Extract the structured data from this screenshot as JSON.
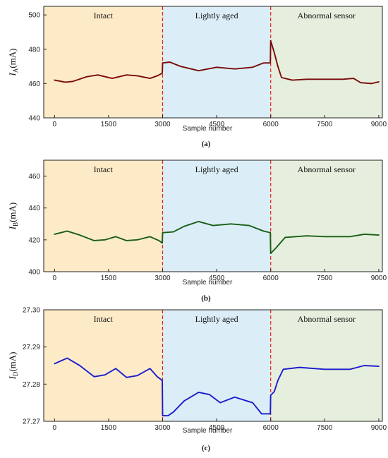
{
  "colors": {
    "region_fills": [
      "#fdebc8",
      "#dbeef7",
      "#e6efdd"
    ],
    "divider": "#e02020",
    "axis": "#222222"
  },
  "chart_data": [
    {
      "type": "line",
      "caption": "(a)",
      "ylabel_main": "I",
      "ylabel_sub": "A",
      "ylabel_unit": "(mA)",
      "xlabel": "Sample number",
      "xlim": [
        -300,
        9100
      ],
      "ylim": [
        440,
        505
      ],
      "xticks": [
        0,
        1500,
        3000,
        4500,
        6000,
        7500,
        9000
      ],
      "yticks": [
        440,
        460,
        480,
        500
      ],
      "regions": [
        {
          "label": "Intact",
          "from": -300,
          "to": 3000
        },
        {
          "label": "Lightly aged",
          "from": 3000,
          "to": 6000
        },
        {
          "label": "Abnormal sensor",
          "from": 6000,
          "to": 9100
        }
      ],
      "dividers": [
        3000,
        6000
      ],
      "series": [
        {
          "color": "#7b0a0a",
          "x": [
            0,
            300,
            500,
            900,
            1200,
            1600,
            2000,
            2300,
            2650,
            2850,
            2990,
            3000,
            3200,
            3500,
            4000,
            4500,
            5000,
            5500,
            5800,
            5990,
            6000,
            6100,
            6200,
            6300,
            6600,
            7000,
            7500,
            8000,
            8300,
            8500,
            8800,
            9000
          ],
          "y": [
            462,
            460.8,
            461.2,
            464,
            465,
            463,
            465,
            464.5,
            463,
            464.5,
            466,
            472,
            472.5,
            470,
            467.5,
            469.5,
            468.5,
            469.5,
            472,
            472,
            485,
            478,
            470,
            463.5,
            462,
            462.5,
            462.5,
            462.5,
            463,
            460.5,
            460,
            461
          ]
        }
      ]
    },
    {
      "type": "line",
      "caption": "(b)",
      "ylabel_main": "I",
      "ylabel_sub": "B",
      "ylabel_unit": "(mA)",
      "xlabel": "Sample number",
      "xlim": [
        -300,
        9100
      ],
      "ylim": [
        400,
        470
      ],
      "xticks": [
        0,
        1500,
        3000,
        4500,
        6000,
        7500,
        9000
      ],
      "yticks": [
        400,
        420,
        440,
        460
      ],
      "regions": [
        {
          "label": "Intact",
          "from": -300,
          "to": 3000
        },
        {
          "label": "Lightly aged",
          "from": 3000,
          "to": 6000
        },
        {
          "label": "Abnormal sensor",
          "from": 6000,
          "to": 9100
        }
      ],
      "dividers": [
        3000,
        6000
      ],
      "series": [
        {
          "color": "#1a5e16",
          "x": [
            0,
            350,
            700,
            1100,
            1400,
            1700,
            2000,
            2300,
            2650,
            2900,
            2990,
            3000,
            3300,
            3600,
            4000,
            4400,
            4900,
            5400,
            5800,
            5990,
            6000,
            6150,
            6400,
            7000,
            7500,
            8200,
            8600,
            9000
          ],
          "y": [
            423.5,
            425.5,
            423,
            419.5,
            420,
            422,
            419.5,
            420,
            422,
            419.5,
            418,
            424.5,
            425,
            428.5,
            431.5,
            429,
            430,
            429,
            425.5,
            424.5,
            411.5,
            415,
            421.5,
            422.5,
            422,
            422,
            423.5,
            423
          ]
        }
      ]
    },
    {
      "type": "line",
      "caption": "(c)",
      "ylabel_main": "I",
      "ylabel_sub": "D",
      "ylabel_unit": "(mA)",
      "xlabel": "Sample number",
      "xlim": [
        -300,
        9100
      ],
      "ylim": [
        27.27,
        27.3
      ],
      "xticks": [
        0,
        1500,
        3000,
        4500,
        6000,
        7500,
        9000
      ],
      "yticks": [
        27.27,
        27.28,
        27.29,
        27.3
      ],
      "ytick_labels": [
        "27.27",
        "27.28",
        "27.29",
        "27.30"
      ],
      "regions": [
        {
          "label": "Intact",
          "from": -300,
          "to": 3000
        },
        {
          "label": "Lightly aged",
          "from": 3000,
          "to": 6000
        },
        {
          "label": "Abnormal sensor",
          "from": 6000,
          "to": 9100
        }
      ],
      "dividers": [
        3000,
        6000
      ],
      "series": [
        {
          "color": "#1c1ccf",
          "x": [
            0,
            350,
            700,
            1100,
            1400,
            1700,
            2000,
            2300,
            2650,
            2850,
            2990,
            3000,
            3150,
            3300,
            3600,
            4000,
            4300,
            4600,
            5000,
            5500,
            5750,
            5990,
            6000,
            6100,
            6200,
            6350,
            6800,
            7500,
            8200,
            8600,
            9000
          ],
          "y": [
            27.2855,
            27.287,
            27.285,
            27.282,
            27.2825,
            27.2842,
            27.2818,
            27.2823,
            27.2842,
            27.282,
            27.281,
            27.2715,
            27.2715,
            27.2725,
            27.2755,
            27.2778,
            27.2772,
            27.275,
            27.2765,
            27.275,
            27.272,
            27.272,
            27.277,
            27.278,
            27.281,
            27.284,
            27.2845,
            27.284,
            27.284,
            27.285,
            27.2848
          ]
        }
      ]
    }
  ]
}
